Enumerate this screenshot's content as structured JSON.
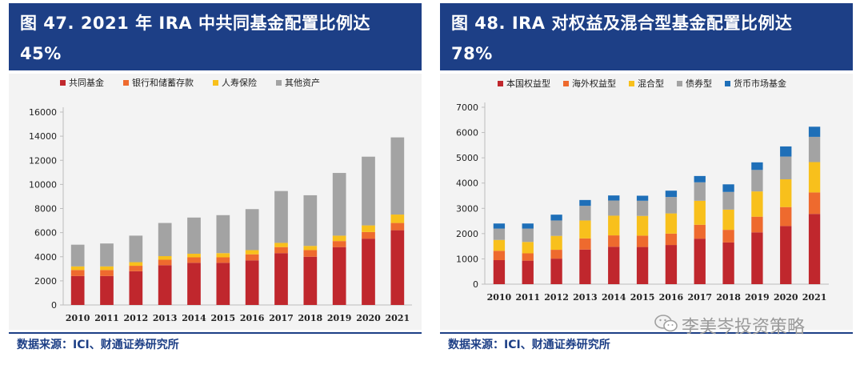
{
  "panels": [
    {
      "title_line1": "图 47. 2021 年 IRA 中共同基金配置比例达",
      "title_line2": "45%",
      "source": "数据来源：ICI、财通证券研究所"
    },
    {
      "title_line1": "图 48. IRA 对权益及混合型基金配置比例达",
      "title_line2": "78%",
      "source": "数据来源：ICI、财通证券研究所"
    }
  ],
  "watermark": "李美岑投资策略",
  "chart_data": [
    {
      "type": "bar",
      "stacked": true,
      "title": "2021 年 IRA 中共同基金配置比例达45%",
      "categories": [
        "2010",
        "2011",
        "2012",
        "2013",
        "2014",
        "2015",
        "2016",
        "2017",
        "2018",
        "2019",
        "2020",
        "2021"
      ],
      "ylim": [
        0,
        16000
      ],
      "yticks": [
        0,
        2000,
        4000,
        6000,
        8000,
        10000,
        12000,
        14000,
        16000
      ],
      "grid": false,
      "legend_position": "top",
      "series": [
        {
          "name": "共同基金",
          "color": "#c0272d",
          "values": [
            2400,
            2400,
            2800,
            3300,
            3500,
            3500,
            3700,
            4300,
            4000,
            4800,
            5500,
            6200
          ]
        },
        {
          "name": "银行和储蓄存款",
          "color": "#ee6a2e",
          "values": [
            500,
            500,
            450,
            450,
            450,
            450,
            500,
            500,
            550,
            500,
            550,
            600
          ]
        },
        {
          "name": "人寿保险",
          "color": "#f8c01c",
          "values": [
            300,
            300,
            300,
            300,
            300,
            350,
            350,
            350,
            350,
            450,
            550,
            700
          ]
        },
        {
          "name": "其他资产",
          "color": "#a3a3a3",
          "values": [
            1800,
            1900,
            2200,
            2750,
            3000,
            3150,
            3400,
            4300,
            4200,
            5200,
            5700,
            6400
          ]
        }
      ]
    },
    {
      "type": "bar",
      "stacked": true,
      "title": "IRA 对权益及混合型基金配置比例达78%",
      "categories": [
        "2010",
        "2011",
        "2012",
        "2013",
        "2014",
        "2015",
        "2016",
        "2017",
        "2018",
        "2019",
        "2020",
        "2021"
      ],
      "ylim": [
        0,
        7000
      ],
      "yticks": [
        0,
        1000,
        2000,
        3000,
        4000,
        5000,
        6000,
        7000
      ],
      "grid": false,
      "legend_position": "top",
      "series": [
        {
          "name": "本国权益型",
          "color": "#c0272d",
          "values": [
            950,
            930,
            1010,
            1370,
            1480,
            1470,
            1550,
            1800,
            1650,
            2050,
            2300,
            2780
          ]
        },
        {
          "name": "海外权益型",
          "color": "#ee6a2e",
          "values": [
            370,
            290,
            350,
            440,
            450,
            450,
            450,
            550,
            500,
            620,
            750,
            850
          ]
        },
        {
          "name": "混合型",
          "color": "#f8c01c",
          "values": [
            430,
            450,
            550,
            710,
            780,
            780,
            800,
            950,
            800,
            1000,
            1100,
            1200
          ]
        },
        {
          "name": "债券型",
          "color": "#a3a3a3",
          "values": [
            450,
            530,
            610,
            580,
            600,
            600,
            650,
            730,
            700,
            850,
            900,
            1000
          ]
        },
        {
          "name": "货币市场基金",
          "color": "#1e6fb8",
          "values": [
            200,
            200,
            230,
            230,
            200,
            200,
            250,
            250,
            300,
            300,
            400,
            400
          ]
        }
      ]
    }
  ]
}
